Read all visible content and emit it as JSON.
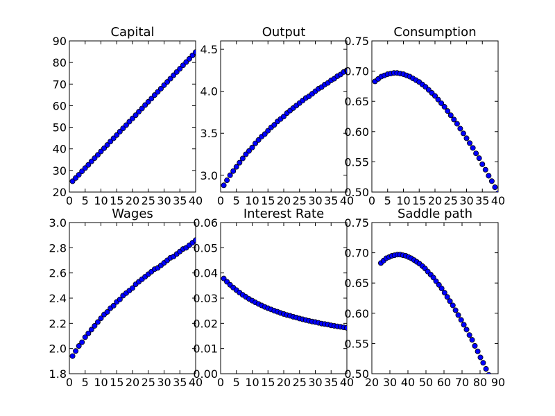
{
  "chart_data": [
    {
      "type": "scatter",
      "title": "Capital",
      "xlim": [
        0,
        40
      ],
      "ylim": [
        20,
        90
      ],
      "xticks": [
        "0",
        "5",
        "10",
        "15",
        "20",
        "25",
        "30",
        "35",
        "40"
      ],
      "yticks": [
        "20",
        "30",
        "40",
        "50",
        "60",
        "70",
        "80",
        "90"
      ],
      "marker_color": "#0000ff",
      "x": [
        1,
        2,
        3,
        4,
        5,
        6,
        7,
        8,
        9,
        10,
        11,
        12,
        13,
        14,
        15,
        16,
        17,
        18,
        19,
        20,
        21,
        22,
        23,
        24,
        25,
        26,
        27,
        28,
        29,
        30,
        31,
        32,
        33,
        34,
        35,
        36,
        37,
        38,
        39,
        40
      ],
      "y": [
        25.0,
        26.5,
        28.0,
        29.6,
        31.1,
        32.6,
        34.2,
        35.7,
        37.2,
        38.8,
        40.3,
        41.8,
        43.4,
        44.9,
        46.4,
        48.0,
        49.5,
        51.0,
        52.6,
        54.1,
        55.6,
        57.2,
        58.7,
        60.3,
        61.8,
        63.3,
        64.9,
        66.4,
        67.9,
        69.5,
        71.0,
        72.5,
        74.1,
        75.6,
        77.1,
        78.7,
        80.2,
        81.7,
        83.3,
        84.8
      ]
    },
    {
      "type": "scatter",
      "title": "Output",
      "xlim": [
        0,
        40
      ],
      "ylim": [
        2.8,
        4.6
      ],
      "xticks": [
        "0",
        "5",
        "10",
        "15",
        "20",
        "25",
        "30",
        "35",
        "40"
      ],
      "yticks": [
        "3.0",
        "3.5",
        "4.0",
        "4.5"
      ],
      "marker_color": "#0000ff",
      "x": [
        1,
        2,
        3,
        4,
        5,
        6,
        7,
        8,
        9,
        10,
        11,
        12,
        13,
        14,
        15,
        16,
        17,
        18,
        19,
        20,
        21,
        22,
        23,
        24,
        25,
        26,
        27,
        28,
        29,
        30,
        31,
        32,
        33,
        34,
        35,
        36,
        37,
        38,
        39,
        40
      ],
      "y": [
        2.88,
        2.94,
        3.0,
        3.05,
        3.1,
        3.15,
        3.2,
        3.25,
        3.29,
        3.33,
        3.38,
        3.42,
        3.46,
        3.49,
        3.53,
        3.57,
        3.6,
        3.64,
        3.67,
        3.7,
        3.74,
        3.77,
        3.8,
        3.83,
        3.86,
        3.89,
        3.92,
        3.94,
        3.97,
        4.0,
        4.03,
        4.05,
        4.08,
        4.1,
        4.13,
        4.15,
        4.18,
        4.2,
        4.23,
        4.25
      ]
    },
    {
      "type": "scatter",
      "title": "Consumption",
      "xlim": [
        0,
        40
      ],
      "ylim": [
        0.5,
        0.75
      ],
      "xticks": [
        "0",
        "5",
        "10",
        "15",
        "20",
        "25",
        "30",
        "35",
        "40"
      ],
      "yticks": [
        "0.50",
        "0.55",
        "0.60",
        "0.65",
        "0.70",
        "0.75"
      ],
      "marker_color": "#0000ff",
      "x": [
        1,
        2,
        3,
        4,
        5,
        6,
        7,
        8,
        9,
        10,
        11,
        12,
        13,
        14,
        15,
        16,
        17,
        18,
        19,
        20,
        21,
        22,
        23,
        24,
        25,
        26,
        27,
        28,
        29,
        30,
        31,
        32,
        33,
        34,
        35,
        36,
        37,
        38,
        39,
        40
      ],
      "y": [
        0.683,
        0.687,
        0.691,
        0.693,
        0.695,
        0.696,
        0.697,
        0.697,
        0.696,
        0.695,
        0.693,
        0.691,
        0.688,
        0.685,
        0.682,
        0.678,
        0.674,
        0.669,
        0.664,
        0.659,
        0.653,
        0.647,
        0.641,
        0.634,
        0.627,
        0.62,
        0.613,
        0.605,
        0.597,
        0.589,
        0.581,
        0.573,
        0.564,
        0.556,
        0.546,
        0.537,
        0.527,
        0.518,
        0.508,
        0.498
      ]
    },
    {
      "type": "scatter",
      "title": "Wages",
      "xlim": [
        0,
        40
      ],
      "ylim": [
        1.8,
        3.0
      ],
      "xticks": [
        "0",
        "5",
        "10",
        "15",
        "20",
        "25",
        "30",
        "35",
        "40"
      ],
      "yticks": [
        "1.8",
        "2.0",
        "2.2",
        "2.4",
        "2.6",
        "2.8",
        "3.0"
      ],
      "marker_color": "#0000ff",
      "x": [
        1,
        2,
        3,
        4,
        5,
        6,
        7,
        8,
        9,
        10,
        11,
        12,
        13,
        14,
        15,
        16,
        17,
        18,
        19,
        20,
        21,
        22,
        23,
        24,
        25,
        26,
        27,
        28,
        29,
        30,
        31,
        32,
        33,
        34,
        35,
        36,
        37,
        38,
        39,
        40
      ],
      "y": [
        1.94,
        1.98,
        2.02,
        2.05,
        2.09,
        2.12,
        2.15,
        2.18,
        2.21,
        2.24,
        2.27,
        2.29,
        2.32,
        2.34,
        2.37,
        2.39,
        2.42,
        2.44,
        2.46,
        2.48,
        2.51,
        2.53,
        2.55,
        2.57,
        2.59,
        2.61,
        2.63,
        2.64,
        2.66,
        2.68,
        2.7,
        2.72,
        2.73,
        2.75,
        2.77,
        2.79,
        2.8,
        2.82,
        2.84,
        2.86
      ]
    },
    {
      "type": "scatter",
      "title": "Interest Rate",
      "xlim": [
        0,
        40
      ],
      "ylim": [
        0.0,
        0.06
      ],
      "xticks": [
        "0",
        "5",
        "10",
        "15",
        "20",
        "25",
        "30",
        "35",
        "40"
      ],
      "yticks": [
        "0.00",
        "0.01",
        "0.02",
        "0.03",
        "0.04",
        "0.05",
        "0.06"
      ],
      "marker_color": "#0000ff",
      "x": [
        1,
        2,
        3,
        4,
        5,
        6,
        7,
        8,
        9,
        10,
        11,
        12,
        13,
        14,
        15,
        16,
        17,
        18,
        19,
        20,
        21,
        22,
        23,
        24,
        25,
        26,
        27,
        28,
        29,
        30,
        31,
        32,
        33,
        34,
        35,
        36,
        37,
        38,
        39,
        40
      ],
      "y": [
        0.0378,
        0.0365,
        0.0353,
        0.0342,
        0.0332,
        0.0322,
        0.0313,
        0.0305,
        0.0297,
        0.029,
        0.0283,
        0.0277,
        0.0271,
        0.0265,
        0.026,
        0.0255,
        0.025,
        0.0246,
        0.0241,
        0.0237,
        0.0233,
        0.023,
        0.0226,
        0.0223,
        0.0219,
        0.0216,
        0.0213,
        0.021,
        0.0207,
        0.0205,
        0.0202,
        0.0199,
        0.0197,
        0.0195,
        0.0192,
        0.019,
        0.0188,
        0.0186,
        0.0184,
        0.0182
      ]
    },
    {
      "type": "scatter",
      "title": "Saddle path",
      "xlim": [
        20,
        90
      ],
      "ylim": [
        0.5,
        0.75
      ],
      "xticks": [
        "20",
        "30",
        "40",
        "50",
        "60",
        "70",
        "80",
        "90"
      ],
      "yticks": [
        "0.50",
        "0.55",
        "0.60",
        "0.65",
        "0.70",
        "0.75"
      ],
      "marker_color": "#0000ff",
      "x": [
        25.0,
        26.5,
        28.0,
        29.6,
        31.1,
        32.6,
        34.2,
        35.7,
        37.2,
        38.8,
        40.3,
        41.8,
        43.4,
        44.9,
        46.4,
        48.0,
        49.5,
        51.0,
        52.6,
        54.1,
        55.6,
        57.2,
        58.7,
        60.3,
        61.8,
        63.3,
        64.9,
        66.4,
        67.9,
        69.5,
        71.0,
        72.5,
        74.1,
        75.6,
        77.1,
        78.7,
        80.2,
        81.7,
        83.3,
        84.8
      ],
      "y": [
        0.683,
        0.687,
        0.691,
        0.693,
        0.695,
        0.696,
        0.697,
        0.697,
        0.696,
        0.695,
        0.693,
        0.691,
        0.688,
        0.685,
        0.682,
        0.678,
        0.674,
        0.669,
        0.664,
        0.659,
        0.653,
        0.647,
        0.641,
        0.634,
        0.627,
        0.62,
        0.613,
        0.605,
        0.597,
        0.589,
        0.581,
        0.573,
        0.564,
        0.556,
        0.546,
        0.537,
        0.527,
        0.518,
        0.508,
        0.498
      ]
    }
  ]
}
